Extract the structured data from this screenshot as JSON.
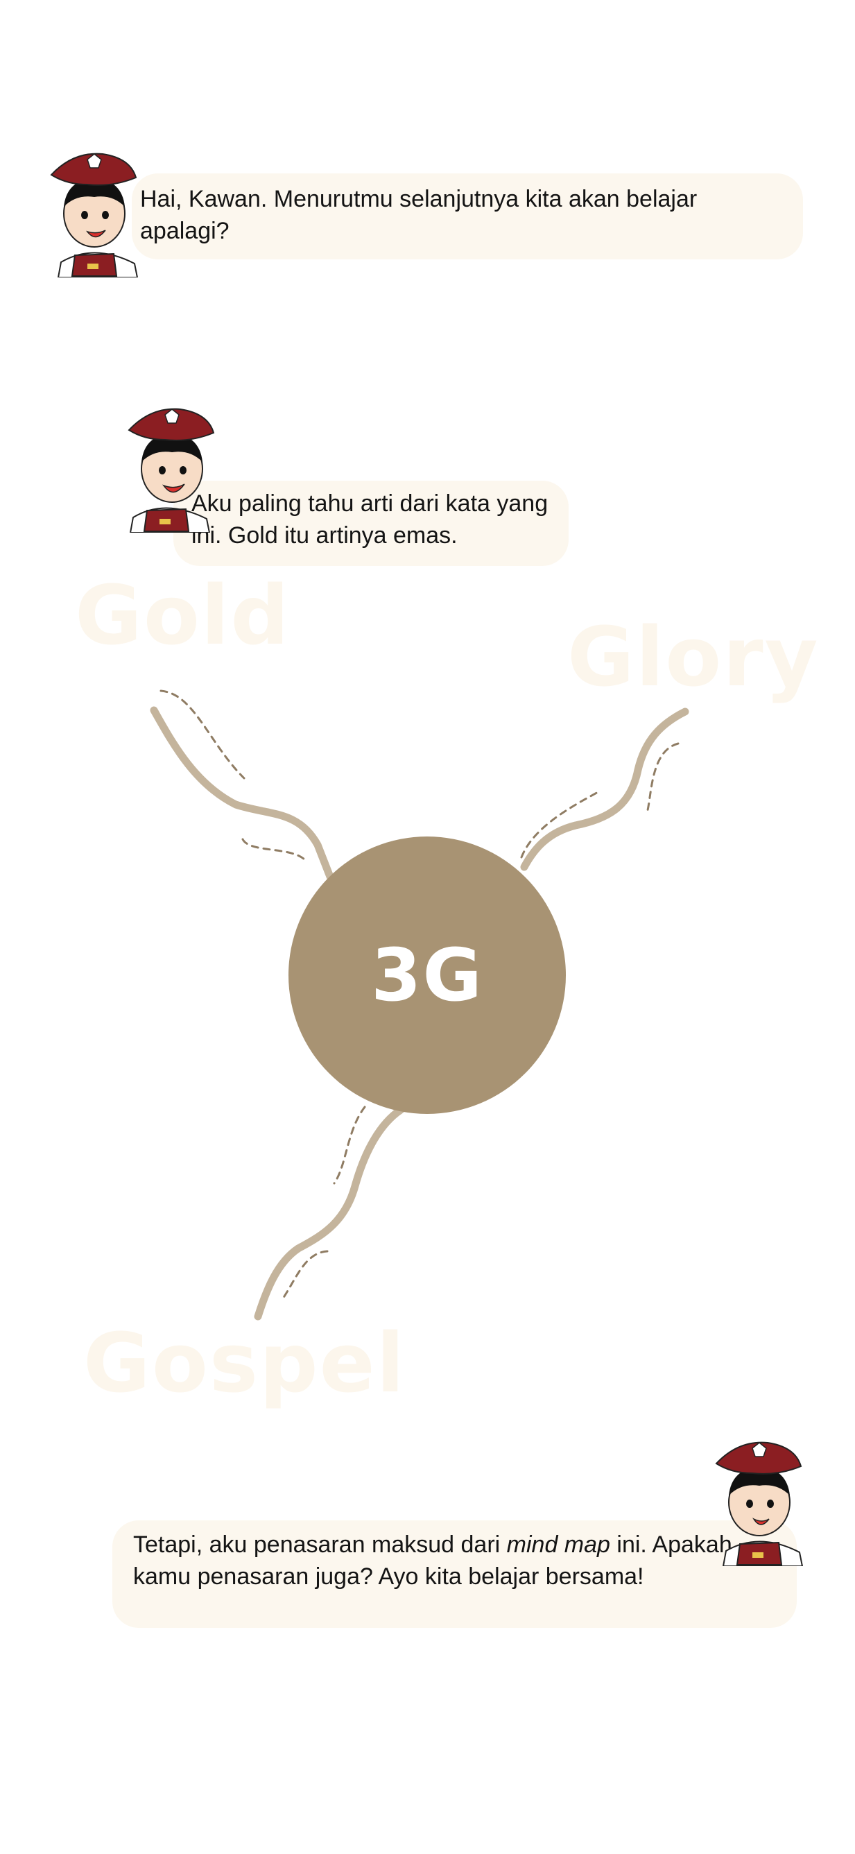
{
  "dialog": {
    "first": "Hai, Kawan. Menurutmu selanjutnya kita akan belajar apalagi?",
    "second": "Aku paling tahu arti dari kata yang ini. Gold itu artinya emas.",
    "third_before": "Tetapi, aku penasaran maksud dari ",
    "third_italic": "mind map",
    "third_after": " ini. Apakah kamu penasaran juga? Ayo kita belajar bersama!"
  },
  "mind_map": {
    "center": "3G",
    "branches": [
      "Gold",
      "Glory",
      "Gospel"
    ]
  },
  "colors": {
    "bubble": "#fcf7ee",
    "center_circle": "#a89373",
    "branch_line": "#c4b49c",
    "faded_word": "#fcf6ec",
    "hat": "#8b1e22"
  },
  "icons": {
    "mascot": "boy-scout-mascot-icon",
    "hat_emblem": "emblem-icon"
  }
}
